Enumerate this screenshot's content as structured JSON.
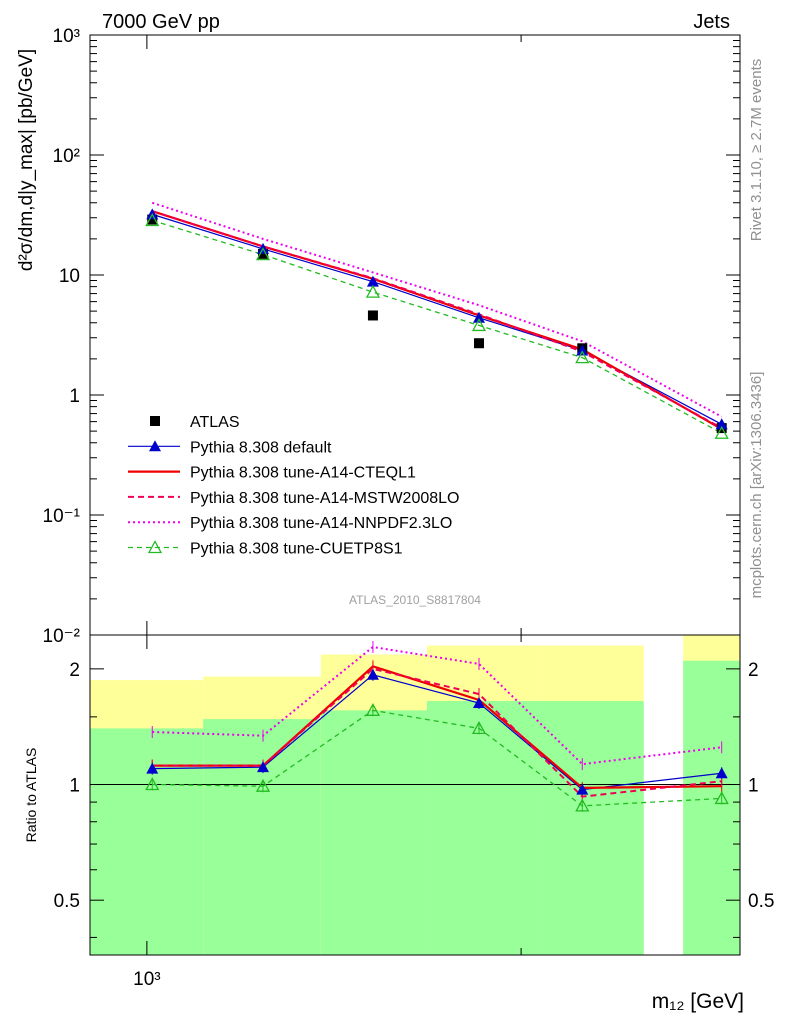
{
  "header": {
    "left": "7000 GeV pp",
    "right": "Jets"
  },
  "side_text": {
    "rivet": "Rivet 3.1.10, ≥ 2.7M events",
    "mcplots": "mcplots.cern.ch [arXiv:1306.3436]"
  },
  "analysis_id": "ATLAS_2010_S8817804",
  "colors": {
    "data": "#000000",
    "default": "#0000cc",
    "cteql1": "#ee0000",
    "mstw": "#ee0055",
    "nnpdf": "#ee00ee",
    "cuetp8s1": "#22bb22",
    "band_inner": "#99ff99",
    "band_outer": "#ffff99"
  },
  "chart_data": [
    {
      "type": "scatter",
      "panel": "main",
      "ylabel": "d²σ/dm,d|y_max| [pb/GeV]",
      "yscale": "log",
      "ylim": [
        0.01,
        1000
      ],
      "xlim": [
        900,
        3000
      ],
      "x_tick_labels": [
        "10³"
      ],
      "y_tick_labels": [
        "10⁻²",
        "10⁻¹",
        "1",
        "10",
        "10²",
        "10³"
      ],
      "x": [
        1010,
        1240,
        1520,
        1850,
        2240,
        2900
      ],
      "series": [
        {
          "name": "ATLAS",
          "key": "data",
          "marker": "square",
          "values": [
            29,
            15,
            4.6,
            2.7,
            2.45,
            0.53
          ]
        },
        {
          "name": "Pythia 8.308 default",
          "key": "default",
          "marker": "triangle",
          "line": "solid",
          "values": [
            32,
            16.5,
            8.8,
            4.4,
            2.35,
            0.57
          ]
        },
        {
          "name": "Pythia 8.308 tune-A14-CTEQL1",
          "key": "cteql1",
          "marker": "none",
          "line": "solid",
          "width": 2,
          "values": [
            34,
            17.3,
            9.3,
            4.6,
            2.4,
            0.52
          ]
        },
        {
          "name": "Pythia 8.308 tune-A14-MSTW2008LO",
          "key": "mstw",
          "marker": "none",
          "line": "dashed",
          "values": [
            34,
            17.3,
            9.4,
            4.7,
            2.3,
            0.53
          ]
        },
        {
          "name": "Pythia 8.308 tune-A14-NNPDF2.3LO",
          "key": "nnpdf",
          "marker": "none",
          "line": "dotted",
          "values": [
            40,
            20,
            10.5,
            5.6,
            2.8,
            0.66
          ]
        },
        {
          "name": "Pythia 8.308 tune-CUETP8S1",
          "key": "cuetp8s1",
          "marker": "open-triangle",
          "line": "dashed",
          "values": [
            28.5,
            14.8,
            7.2,
            3.8,
            2.05,
            0.48
          ]
        }
      ]
    },
    {
      "type": "line",
      "panel": "ratio",
      "xlabel": "m₁₂ [GeV]",
      "ylabel": "Ratio to ATLAS",
      "yscale": "log",
      "ylim": [
        0.36,
        2.45
      ],
      "xlim": [
        900,
        3000
      ],
      "y_tick_labels": [
        "0.5",
        "1",
        "2"
      ],
      "bands": [
        {
          "x": [
            900,
            1110
          ],
          "inner": [
            0.36,
            1.4
          ],
          "outer": [
            0.36,
            1.87
          ]
        },
        {
          "x": [
            1110,
            1380
          ],
          "inner": [
            0.36,
            1.48
          ],
          "outer": [
            0.36,
            1.91
          ]
        },
        {
          "x": [
            1380,
            1680
          ],
          "inner": [
            0.36,
            1.56
          ],
          "outer": [
            0.36,
            2.18
          ]
        },
        {
          "x": [
            1680,
            2060
          ],
          "inner": [
            0.36,
            1.65
          ],
          "outer": [
            0.36,
            2.3
          ]
        },
        {
          "x": [
            2060,
            2510
          ],
          "inner": [
            0.36,
            1.65
          ],
          "outer": [
            0.36,
            2.3
          ]
        },
        {
          "x": [
            2700,
            3000
          ],
          "inner": [
            0.36,
            2.1
          ],
          "outer": [
            0.36,
            2.45
          ]
        }
      ],
      "x": [
        1010,
        1240,
        1520,
        1850,
        2240,
        2900
      ],
      "series": [
        {
          "key": "default",
          "values": [
            1.1,
            1.11,
            1.93,
            1.63,
            0.97,
            1.07
          ]
        },
        {
          "key": "cteql1",
          "values": [
            1.12,
            1.12,
            2.03,
            1.66,
            0.98,
            0.99
          ]
        },
        {
          "key": "mstw",
          "values": [
            1.12,
            1.12,
            2.0,
            1.72,
            0.93,
            1.02
          ]
        },
        {
          "key": "nnpdf",
          "values": [
            1.37,
            1.34,
            2.28,
            2.06,
            1.13,
            1.25
          ]
        },
        {
          "key": "cuetp8s1",
          "values": [
            1.0,
            0.99,
            1.56,
            1.4,
            0.88,
            0.92
          ]
        }
      ]
    }
  ]
}
